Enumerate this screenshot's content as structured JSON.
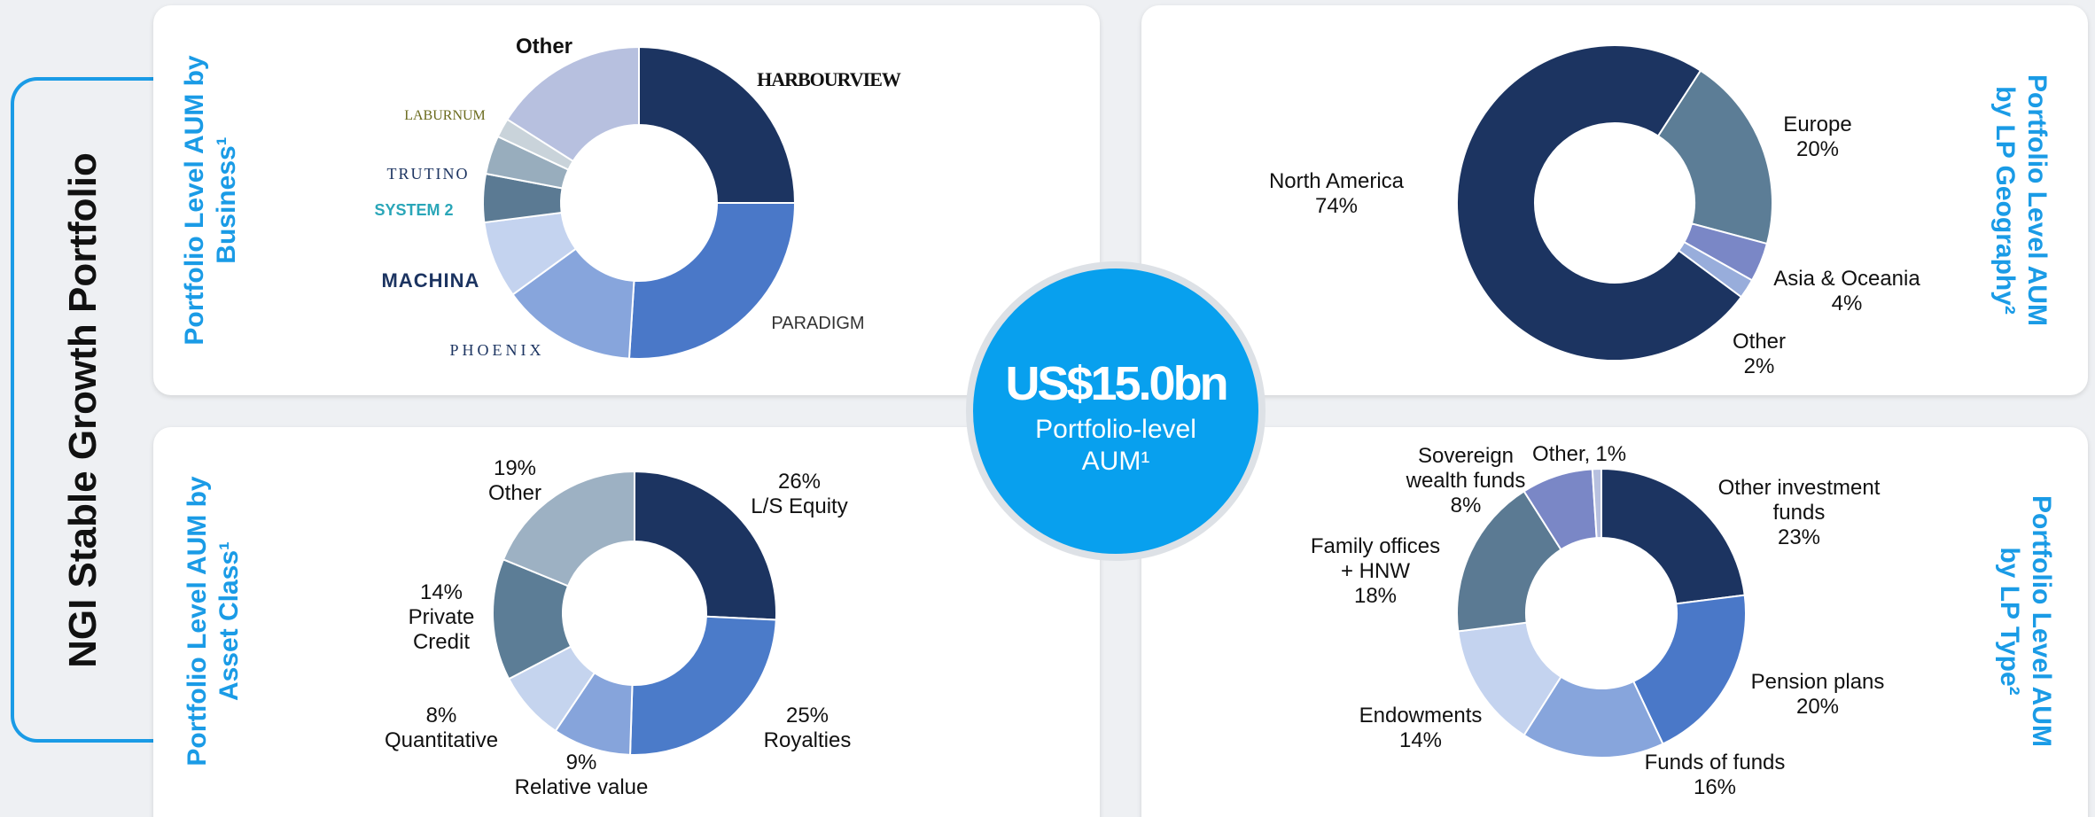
{
  "header": {
    "title": "NGI Stable Growth Portfolio"
  },
  "center": {
    "value": "US$15.0bn",
    "label": "Portfolio-level\nAUM¹"
  },
  "chart_data": [
    {
      "type": "donut",
      "title": "Portfolio Level AUM by\nBusiness¹",
      "categories": [
        "HARBOURVIEW",
        "PARADIGM",
        "PHOENIX",
        "MACHINA",
        "SYSTEM 2",
        "TRUTINO",
        "LABURNUM",
        "Other"
      ],
      "values": [
        25,
        26,
        14,
        8,
        5,
        4,
        2,
        16
      ],
      "colors": [
        "#1c3461",
        "#4a78c8",
        "#87a5dc",
        "#c4d3ef",
        "#5b7a93",
        "#98adbd",
        "#c9d3da",
        "#b7c0df"
      ]
    },
    {
      "type": "donut",
      "title": "Portfolio Level AUM\nby LP Geography²",
      "categories": [
        "North America",
        "Europe",
        "Asia & Oceania",
        "Other"
      ],
      "values": [
        74,
        20,
        4,
        2
      ],
      "value_labels": [
        "74%",
        "20%",
        "4%",
        "2%"
      ],
      "colors": [
        "#1c3461",
        "#5c7d96",
        "#7a87c6",
        "#98addb"
      ]
    },
    {
      "type": "donut",
      "title": "Portfolio Level AUM by\nAsset Class¹",
      "categories": [
        "L/S Equity",
        "Royalties",
        "Relative value",
        "Quantitative",
        "Private\nCredit",
        "Other"
      ],
      "values": [
        26,
        25,
        9,
        8,
        14,
        19
      ],
      "value_labels": [
        "26%",
        "25%",
        "9%",
        "8%",
        "14%",
        "19%"
      ],
      "colors": [
        "#1c3461",
        "#4b7bc9",
        "#86a4db",
        "#c5d4ee",
        "#5c7d96",
        "#9db1c3"
      ]
    },
    {
      "type": "donut",
      "title": "Portfolio Level AUM\nby LP Type²",
      "categories": [
        "Other investment\nfunds",
        "Pension plans",
        "Funds of funds",
        "Endowments",
        "Family offices\n+ HNW",
        "Sovereign\nwealth funds",
        "Other,"
      ],
      "values": [
        23,
        20,
        16,
        14,
        18,
        8,
        1
      ],
      "value_labels": [
        "23%",
        "20%",
        "16%",
        "14%",
        "18%",
        "8%",
        "1%"
      ],
      "colors": [
        "#1c3461",
        "#4a78c8",
        "#87a5dc",
        "#c4d3ef",
        "#5b7a93",
        "#7a87c6",
        "#b7c0df"
      ]
    }
  ]
}
